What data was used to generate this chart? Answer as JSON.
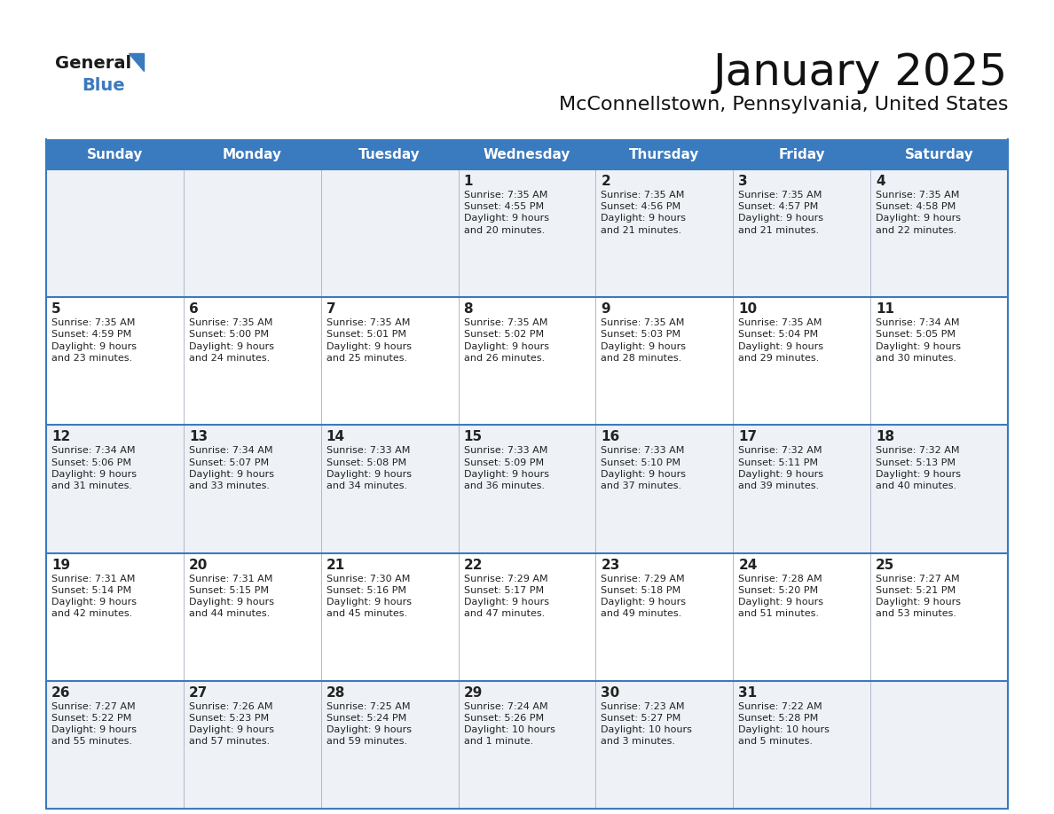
{
  "title": "January 2025",
  "subtitle": "McConnellstown, Pennsylvania, United States",
  "header_bg": "#3a7abf",
  "header_text": "#ffffff",
  "row_bg_odd": "#eef2f7",
  "row_bg_even": "#ffffff",
  "border_color": "#3a7abf",
  "divider_color": "#3a7abf",
  "text_color": "#222222",
  "days_of_week": [
    "Sunday",
    "Monday",
    "Tuesday",
    "Wednesday",
    "Thursday",
    "Friday",
    "Saturday"
  ],
  "weeks": [
    [
      {
        "day": "",
        "info": ""
      },
      {
        "day": "",
        "info": ""
      },
      {
        "day": "",
        "info": ""
      },
      {
        "day": "1",
        "info": "Sunrise: 7:35 AM\nSunset: 4:55 PM\nDaylight: 9 hours\nand 20 minutes."
      },
      {
        "day": "2",
        "info": "Sunrise: 7:35 AM\nSunset: 4:56 PM\nDaylight: 9 hours\nand 21 minutes."
      },
      {
        "day": "3",
        "info": "Sunrise: 7:35 AM\nSunset: 4:57 PM\nDaylight: 9 hours\nand 21 minutes."
      },
      {
        "day": "4",
        "info": "Sunrise: 7:35 AM\nSunset: 4:58 PM\nDaylight: 9 hours\nand 22 minutes."
      }
    ],
    [
      {
        "day": "5",
        "info": "Sunrise: 7:35 AM\nSunset: 4:59 PM\nDaylight: 9 hours\nand 23 minutes."
      },
      {
        "day": "6",
        "info": "Sunrise: 7:35 AM\nSunset: 5:00 PM\nDaylight: 9 hours\nand 24 minutes."
      },
      {
        "day": "7",
        "info": "Sunrise: 7:35 AM\nSunset: 5:01 PM\nDaylight: 9 hours\nand 25 minutes."
      },
      {
        "day": "8",
        "info": "Sunrise: 7:35 AM\nSunset: 5:02 PM\nDaylight: 9 hours\nand 26 minutes."
      },
      {
        "day": "9",
        "info": "Sunrise: 7:35 AM\nSunset: 5:03 PM\nDaylight: 9 hours\nand 28 minutes."
      },
      {
        "day": "10",
        "info": "Sunrise: 7:35 AM\nSunset: 5:04 PM\nDaylight: 9 hours\nand 29 minutes."
      },
      {
        "day": "11",
        "info": "Sunrise: 7:34 AM\nSunset: 5:05 PM\nDaylight: 9 hours\nand 30 minutes."
      }
    ],
    [
      {
        "day": "12",
        "info": "Sunrise: 7:34 AM\nSunset: 5:06 PM\nDaylight: 9 hours\nand 31 minutes."
      },
      {
        "day": "13",
        "info": "Sunrise: 7:34 AM\nSunset: 5:07 PM\nDaylight: 9 hours\nand 33 minutes."
      },
      {
        "day": "14",
        "info": "Sunrise: 7:33 AM\nSunset: 5:08 PM\nDaylight: 9 hours\nand 34 minutes."
      },
      {
        "day": "15",
        "info": "Sunrise: 7:33 AM\nSunset: 5:09 PM\nDaylight: 9 hours\nand 36 minutes."
      },
      {
        "day": "16",
        "info": "Sunrise: 7:33 AM\nSunset: 5:10 PM\nDaylight: 9 hours\nand 37 minutes."
      },
      {
        "day": "17",
        "info": "Sunrise: 7:32 AM\nSunset: 5:11 PM\nDaylight: 9 hours\nand 39 minutes."
      },
      {
        "day": "18",
        "info": "Sunrise: 7:32 AM\nSunset: 5:13 PM\nDaylight: 9 hours\nand 40 minutes."
      }
    ],
    [
      {
        "day": "19",
        "info": "Sunrise: 7:31 AM\nSunset: 5:14 PM\nDaylight: 9 hours\nand 42 minutes."
      },
      {
        "day": "20",
        "info": "Sunrise: 7:31 AM\nSunset: 5:15 PM\nDaylight: 9 hours\nand 44 minutes."
      },
      {
        "day": "21",
        "info": "Sunrise: 7:30 AM\nSunset: 5:16 PM\nDaylight: 9 hours\nand 45 minutes."
      },
      {
        "day": "22",
        "info": "Sunrise: 7:29 AM\nSunset: 5:17 PM\nDaylight: 9 hours\nand 47 minutes."
      },
      {
        "day": "23",
        "info": "Sunrise: 7:29 AM\nSunset: 5:18 PM\nDaylight: 9 hours\nand 49 minutes."
      },
      {
        "day": "24",
        "info": "Sunrise: 7:28 AM\nSunset: 5:20 PM\nDaylight: 9 hours\nand 51 minutes."
      },
      {
        "day": "25",
        "info": "Sunrise: 7:27 AM\nSunset: 5:21 PM\nDaylight: 9 hours\nand 53 minutes."
      }
    ],
    [
      {
        "day": "26",
        "info": "Sunrise: 7:27 AM\nSunset: 5:22 PM\nDaylight: 9 hours\nand 55 minutes."
      },
      {
        "day": "27",
        "info": "Sunrise: 7:26 AM\nSunset: 5:23 PM\nDaylight: 9 hours\nand 57 minutes."
      },
      {
        "day": "28",
        "info": "Sunrise: 7:25 AM\nSunset: 5:24 PM\nDaylight: 9 hours\nand 59 minutes."
      },
      {
        "day": "29",
        "info": "Sunrise: 7:24 AM\nSunset: 5:26 PM\nDaylight: 10 hours\nand 1 minute."
      },
      {
        "day": "30",
        "info": "Sunrise: 7:23 AM\nSunset: 5:27 PM\nDaylight: 10 hours\nand 3 minutes."
      },
      {
        "day": "31",
        "info": "Sunrise: 7:22 AM\nSunset: 5:28 PM\nDaylight: 10 hours\nand 5 minutes."
      },
      {
        "day": "",
        "info": ""
      }
    ]
  ],
  "logo_general_color": "#1a1a1a",
  "logo_blue_color": "#3a7abf",
  "logo_triangle_color": "#3a7abf",
  "title_fontsize": 36,
  "subtitle_fontsize": 16,
  "header_fontsize": 11,
  "day_num_fontsize": 11,
  "cell_text_fontsize": 8
}
